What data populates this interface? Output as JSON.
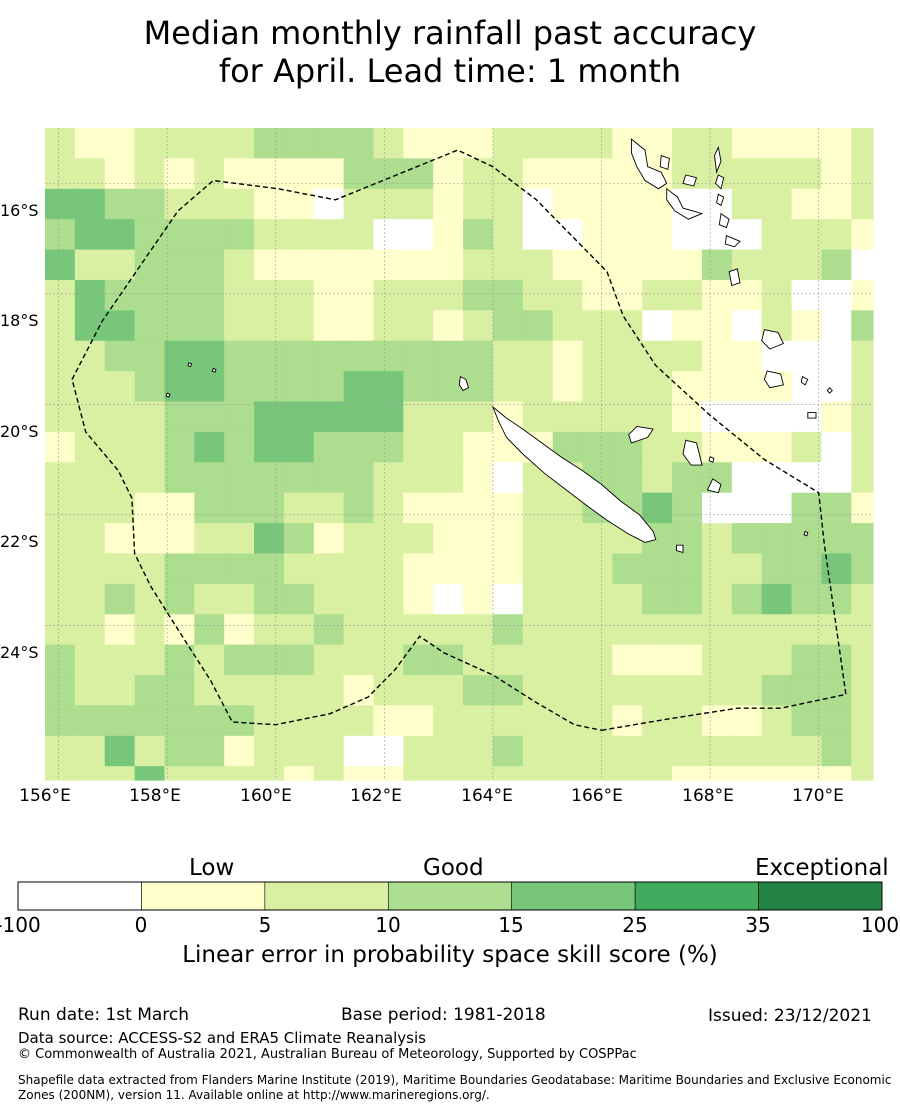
{
  "title": {
    "line1": "Median monthly rainfall past accuracy",
    "line2": "for April. Lead time: 1 month"
  },
  "map": {
    "lon_range": [
      155.75,
      171.0
    ],
    "lat_range": [
      -26.8,
      -15.0
    ],
    "lon_ticks": [
      "156°E",
      "158°E",
      "160°E",
      "162°E",
      "164°E",
      "166°E",
      "168°E",
      "170°E"
    ],
    "lat_ticks": [
      "16°S",
      "18°S",
      "20°S",
      "22°S",
      "24°S"
    ],
    "grid_origin": {
      "lon": 155.75,
      "lat": -15.0
    },
    "cell_size_deg": 0.55,
    "color_classes": [
      "#ffffff",
      "#ffffcc",
      "#d9f0a3",
      "#addd8e",
      "#78c679",
      "#41ab5d",
      "#238443"
    ],
    "cell_classes": [
      "2112222333321112222112211112",
      "2212121111333122111112222212",
      "4433222110222122011110022112",
      "3443333222200132001110002221",
      "4223332111111122211111322230",
      "2433332221122233221122112001",
      "2443332221122123322201102103",
      "2233443333333332212222110002",
      "2223443333443332212221111002",
      "2222333444442221222221000012",
      "1222343443332211133322111202",
      "2222333333322210223323300002",
      "2221133322321111223343000331",
      "2211122431222111222233233333",
      "2222333322221111222333223343",
      "2232322332221010222233234332",
      "2212131223222223222222222222",
      "3222323332223322222111222332",
      "3223322222122233222222223332",
      "3333333222211222222122112332",
      "2242331222002223222222222232",
      "2224222212112222222221111112",
      "2222332221120122222222222222",
      "2222332222220122222122222222",
      "3222332222222222222222222332"
    ],
    "boundary": [
      [
        166.0,
        -25.9
      ],
      [
        167.2,
        -25.7
      ],
      [
        168.5,
        -25.5
      ],
      [
        169.3,
        -25.5
      ],
      [
        170.5,
        -25.25
      ],
      [
        170.1,
        -22.5
      ],
      [
        170.0,
        -21.6
      ],
      [
        169.0,
        -21.0
      ],
      [
        168.0,
        -20.2
      ],
      [
        167.0,
        -19.3
      ],
      [
        166.4,
        -18.4
      ],
      [
        166.1,
        -17.6
      ],
      [
        165.6,
        -17.1
      ],
      [
        164.8,
        -16.3
      ],
      [
        164.0,
        -15.7
      ],
      [
        163.35,
        -15.4
      ],
      [
        161.1,
        -16.3
      ],
      [
        160.05,
        -16.1
      ],
      [
        158.85,
        -15.95
      ],
      [
        158.2,
        -16.5
      ],
      [
        157.5,
        -17.5
      ],
      [
        156.8,
        -18.5
      ],
      [
        156.25,
        -19.55
      ],
      [
        156.5,
        -20.5
      ],
      [
        157.1,
        -21.2
      ],
      [
        157.35,
        -21.7
      ],
      [
        157.4,
        -22.7
      ],
      [
        157.7,
        -23.3
      ],
      [
        158.15,
        -24.0
      ],
      [
        158.8,
        -25.0
      ],
      [
        159.2,
        -25.75
      ],
      [
        160.0,
        -25.8
      ],
      [
        161.0,
        -25.6
      ],
      [
        161.7,
        -25.3
      ],
      [
        162.2,
        -24.8
      ],
      [
        162.65,
        -24.2
      ],
      [
        163.1,
        -24.5
      ],
      [
        164.0,
        -24.9
      ],
      [
        164.8,
        -25.4
      ],
      [
        165.5,
        -25.8
      ],
      [
        166.0,
        -25.9
      ]
    ],
    "islands": [
      [
        [
          164.0,
          -20.05
        ],
        [
          164.25,
          -20.25
        ],
        [
          164.55,
          -20.45
        ],
        [
          164.9,
          -20.7
        ],
        [
          165.25,
          -20.95
        ],
        [
          165.65,
          -21.2
        ],
        [
          166.0,
          -21.45
        ],
        [
          166.35,
          -21.75
        ],
        [
          166.7,
          -22.0
        ],
        [
          166.95,
          -22.3
        ],
        [
          167.0,
          -22.45
        ],
        [
          166.8,
          -22.5
        ],
        [
          166.5,
          -22.35
        ],
        [
          166.1,
          -22.1
        ],
        [
          165.75,
          -21.85
        ],
        [
          165.35,
          -21.55
        ],
        [
          164.95,
          -21.25
        ],
        [
          164.55,
          -20.9
        ],
        [
          164.25,
          -20.6
        ],
        [
          164.1,
          -20.3
        ]
      ],
      [
        [
          163.4,
          -19.5
        ],
        [
          163.5,
          -19.55
        ],
        [
          163.55,
          -19.7
        ],
        [
          163.45,
          -19.75
        ],
        [
          163.38,
          -19.65
        ]
      ],
      [
        [
          167.55,
          -20.65
        ],
        [
          167.75,
          -20.7
        ],
        [
          167.8,
          -20.9
        ],
        [
          167.85,
          -21.1
        ],
        [
          167.65,
          -21.1
        ],
        [
          167.5,
          -20.9
        ]
      ],
      [
        [
          166.65,
          -20.4
        ],
        [
          166.95,
          -20.45
        ],
        [
          166.85,
          -20.6
        ],
        [
          166.55,
          -20.7
        ],
        [
          166.5,
          -20.55
        ]
      ],
      [
        [
          168.05,
          -21.35
        ],
        [
          168.2,
          -21.45
        ],
        [
          168.15,
          -21.6
        ],
        [
          167.95,
          -21.55
        ]
      ],
      [
        [
          167.38,
          -22.55
        ],
        [
          167.5,
          -22.55
        ],
        [
          167.5,
          -22.68
        ],
        [
          167.38,
          -22.65
        ]
      ],
      [
        [
          166.55,
          -15.2
        ],
        [
          166.8,
          -15.4
        ],
        [
          166.85,
          -15.7
        ],
        [
          167.1,
          -15.8
        ],
        [
          167.2,
          -16.0
        ],
        [
          167.05,
          -16.1
        ],
        [
          166.8,
          -15.95
        ],
        [
          166.65,
          -15.7
        ],
        [
          166.55,
          -15.45
        ]
      ],
      [
        [
          167.1,
          -15.5
        ],
        [
          167.25,
          -15.55
        ],
        [
          167.22,
          -15.75
        ],
        [
          167.08,
          -15.7
        ]
      ],
      [
        [
          167.55,
          -15.85
        ],
        [
          167.75,
          -15.9
        ],
        [
          167.7,
          -16.05
        ],
        [
          167.5,
          -16.0
        ]
      ],
      [
        [
          168.15,
          -15.35
        ],
        [
          168.2,
          -15.6
        ],
        [
          168.12,
          -15.8
        ],
        [
          168.08,
          -15.5
        ]
      ],
      [
        [
          168.15,
          -15.85
        ],
        [
          168.25,
          -15.9
        ],
        [
          168.2,
          -16.1
        ],
        [
          168.1,
          -16.0
        ]
      ],
      [
        [
          167.2,
          -16.1
        ],
        [
          167.4,
          -16.25
        ],
        [
          167.5,
          -16.45
        ],
        [
          167.85,
          -16.55
        ],
        [
          167.6,
          -16.65
        ],
        [
          167.35,
          -16.5
        ],
        [
          167.2,
          -16.3
        ]
      ],
      [
        [
          168.15,
          -16.2
        ],
        [
          168.25,
          -16.25
        ],
        [
          168.2,
          -16.4
        ],
        [
          168.12,
          -16.35
        ]
      ],
      [
        [
          168.2,
          -16.55
        ],
        [
          168.35,
          -16.65
        ],
        [
          168.3,
          -16.8
        ],
        [
          168.17,
          -16.75
        ]
      ],
      [
        [
          168.3,
          -16.95
        ],
        [
          168.55,
          -17.05
        ],
        [
          168.45,
          -17.15
        ],
        [
          168.28,
          -17.1
        ]
      ],
      [
        [
          168.35,
          -17.6
        ],
        [
          168.5,
          -17.55
        ],
        [
          168.55,
          -17.8
        ],
        [
          168.4,
          -17.85
        ]
      ],
      [
        [
          169.0,
          -18.65
        ],
        [
          169.25,
          -18.7
        ],
        [
          169.35,
          -18.9
        ],
        [
          169.1,
          -19.0
        ],
        [
          168.95,
          -18.85
        ]
      ],
      [
        [
          169.05,
          -19.4
        ],
        [
          169.3,
          -19.45
        ],
        [
          169.35,
          -19.65
        ],
        [
          169.1,
          -19.7
        ],
        [
          169.0,
          -19.55
        ]
      ],
      [
        [
          169.7,
          -19.5
        ],
        [
          169.8,
          -19.55
        ],
        [
          169.75,
          -19.65
        ],
        [
          169.68,
          -19.6
        ]
      ],
      [
        [
          170.2,
          -19.7
        ],
        [
          170.25,
          -19.75
        ],
        [
          170.2,
          -19.8
        ],
        [
          170.16,
          -19.75
        ]
      ],
      [
        [
          169.8,
          -20.15
        ],
        [
          169.95,
          -20.15
        ],
        [
          169.95,
          -20.25
        ],
        [
          169.8,
          -20.25
        ]
      ],
      [
        [
          168.0,
          -20.95
        ],
        [
          168.07,
          -20.98
        ],
        [
          168.05,
          -21.05
        ],
        [
          167.98,
          -21.02
        ]
      ],
      [
        [
          169.75,
          -22.3
        ],
        [
          169.8,
          -22.32
        ],
        [
          169.78,
          -22.38
        ],
        [
          169.73,
          -22.36
        ]
      ],
      [
        [
          158.4,
          -19.25
        ],
        [
          158.45,
          -19.27
        ],
        [
          158.43,
          -19.32
        ],
        [
          158.38,
          -19.3
        ]
      ],
      [
        [
          158.85,
          -19.35
        ],
        [
          158.9,
          -19.37
        ],
        [
          158.88,
          -19.42
        ],
        [
          158.83,
          -19.4
        ]
      ],
      [
        [
          158.0,
          -19.8
        ],
        [
          158.05,
          -19.82
        ],
        [
          158.03,
          -19.87
        ],
        [
          157.98,
          -19.85
        ]
      ]
    ]
  },
  "colorbar": {
    "headings": [
      "Low",
      "Good",
      "Exceptional"
    ],
    "colors": [
      "#ffffff",
      "#ffffcc",
      "#d9f0a3",
      "#addd8e",
      "#78c679",
      "#41ab5d",
      "#238443"
    ],
    "ticks": [
      "-100",
      "0",
      "5",
      "10",
      "15",
      "25",
      "35",
      "100"
    ],
    "label": "Linear error in probability space skill score (%)"
  },
  "footer": {
    "run_date": "Run date: 1st March",
    "base_period": "Base period: 1981-2018",
    "issued": "Issued: 23/12/2021",
    "data_source": "Data source: ACCESS-S2 and ERA5 Climate Reanalysis",
    "copyright": "© Commonwealth of Australia 2021, Australian Bureau of Meteorology, Supported by COSPPac",
    "shapefile": "Shapefile data extracted from Flanders Marine Institute (2019), Maritime Boundaries Geodatabase: Maritime Boundaries and Exclusive Economic Zones (200NM), version 11. Available online at http://www.marineregions.org/."
  }
}
